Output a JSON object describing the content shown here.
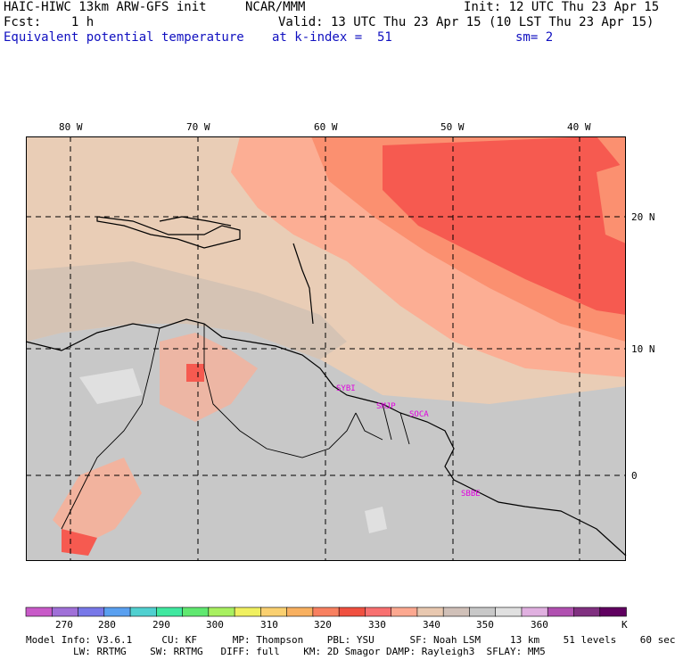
{
  "header": {
    "left_line1": "HAIC-HIWC 13km ARW-GFS init",
    "center_line1": "NCAR/MMM",
    "right_line1": "Init: 12 UTC Thu 23 Apr 15",
    "left_line2": "Fcst:    1 h",
    "right_line2": "Valid: 13 UTC Thu 23 Apr 15 (10 LST Thu 23 Apr 15)",
    "field_name": "Equivalent potential temperature",
    "level": "at k-index =  51",
    "smoothing": "sm= 2"
  },
  "map": {
    "lon_labels": [
      "80 W",
      "70 W",
      "60 W",
      "50 W",
      "40 W"
    ],
    "lat_labels": [
      "20 N",
      "10 N",
      "0"
    ],
    "stations": [
      "SYBI",
      "SMJP",
      "SOCA",
      "SBBE"
    ],
    "colors": {
      "ocean_east": "#f65a50",
      "ocean_mid": "#fc9e88",
      "land_gray": "#c8c8c8",
      "tan": "#e9cdb6",
      "beige": "#d5c3b4"
    }
  },
  "colorbar": {
    "labels": [
      "270",
      "280",
      "290",
      "300",
      "310",
      "320",
      "330",
      "340",
      "350",
      "360",
      "K"
    ],
    "colors": [
      "#c85ac8",
      "#a070d8",
      "#7878e8",
      "#5aa0f0",
      "#50d0d0",
      "#40e8a0",
      "#60e870",
      "#a8f060",
      "#f0f060",
      "#fad070",
      "#f8b060",
      "#f88060",
      "#f05040",
      "#f87070",
      "#fca890",
      "#e8c8b0",
      "#d0c0b8",
      "#c8c8c8",
      "#e0e0e0",
      "#e0b0e0",
      "#b050b0",
      "#803080",
      "#600060"
    ]
  },
  "footer": {
    "line1": "Model Info: V3.6.1     CU: KF      MP: Thompson    PBL: YSU      SF: Noah LSM     13 km    51 levels    60 sec",
    "line2": "        LW: RRTMG    SW: RRTMG   DIFF: full    KM: 2D Smagor DAMP: Rayleigh3  SFLAY: MM5"
  }
}
